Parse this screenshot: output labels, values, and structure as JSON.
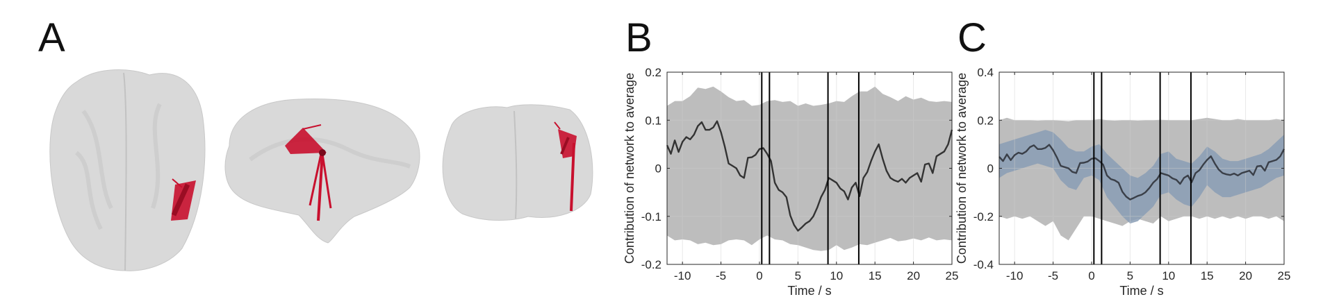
{
  "panels": {
    "a_label": "A",
    "b_label": "B",
    "c_label": "C"
  },
  "brain_views": {
    "views": [
      "axial",
      "sagittal",
      "coronal"
    ],
    "edge_color": "#d0182f",
    "brain_color": "#d7d7d7"
  },
  "chart_data": [
    {
      "panel": "B",
      "type": "line",
      "xlabel": "Time / s",
      "ylabel": "Contribution of network to average",
      "xlim": [
        -12,
        25
      ],
      "ylim": [
        -0.2,
        0.2
      ],
      "xticks": [
        -10,
        -5,
        0,
        5,
        10,
        15,
        20,
        25
      ],
      "yticks": [
        -0.2,
        -0.1,
        0,
        0.1,
        0.2
      ],
      "grid": true,
      "vertical_lines": [
        0.3,
        1.3,
        8.9,
        12.9
      ],
      "series": [
        {
          "role": "mean",
          "color": "#333333",
          "x": [
            -12,
            -11.5,
            -11,
            -10.5,
            -10,
            -9.5,
            -9,
            -8.5,
            -8,
            -7.5,
            -7,
            -6.5,
            -6,
            -5.5,
            -5,
            -4.5,
            -4,
            -3.5,
            -3,
            -2.5,
            -2,
            -1.5,
            -1,
            -0.5,
            0,
            0.5,
            1,
            1.5,
            2,
            2.5,
            3,
            3.5,
            4,
            4.5,
            5,
            5.5,
            6,
            6.5,
            7,
            7.5,
            8,
            8.5,
            9,
            9.5,
            10,
            10.5,
            11,
            11.5,
            12,
            12.5,
            13,
            13.5,
            14,
            14.5,
            15,
            15.5,
            16,
            16.5,
            17,
            17.5,
            18,
            18.5,
            19,
            19.5,
            20,
            20.5,
            21,
            21.5,
            22,
            22.5,
            23,
            23.5,
            24,
            24.5,
            25
          ],
          "y": [
            0.048,
            0.03,
            0.058,
            0.034,
            0.055,
            0.065,
            0.06,
            0.07,
            0.088,
            0.096,
            0.08,
            0.08,
            0.085,
            0.098,
            0.075,
            0.045,
            0.01,
            0.005,
            0.0,
            -0.015,
            -0.02,
            0.022,
            0.023,
            0.028,
            0.04,
            0.042,
            0.03,
            0.015,
            -0.03,
            -0.045,
            -0.05,
            -0.06,
            -0.098,
            -0.118,
            -0.13,
            -0.123,
            -0.115,
            -0.11,
            -0.1,
            -0.082,
            -0.06,
            -0.045,
            -0.02,
            -0.025,
            -0.03,
            -0.042,
            -0.048,
            -0.065,
            -0.04,
            -0.03,
            -0.058,
            -0.02,
            -0.008,
            0.015,
            0.035,
            0.05,
            0.02,
            -0.005,
            -0.02,
            -0.025,
            -0.028,
            -0.022,
            -0.03,
            -0.02,
            -0.015,
            -0.01,
            -0.028,
            0.008,
            0.01,
            -0.01,
            0.025,
            0.03,
            0.035,
            0.05,
            0.08
          ]
        },
        {
          "role": "null_band",
          "color": "#bdbdbd",
          "x": [
            -12,
            -11,
            -10,
            -9,
            -8,
            -7,
            -6,
            -5,
            -4,
            -3,
            -2,
            -1,
            0,
            1,
            2,
            3,
            4,
            5,
            6,
            7,
            8,
            9,
            10,
            11,
            12,
            13,
            14,
            15,
            16,
            17,
            18,
            19,
            20,
            21,
            22,
            23,
            24,
            25
          ],
          "upper": [
            0.13,
            0.14,
            0.14,
            0.15,
            0.168,
            0.165,
            0.17,
            0.16,
            0.148,
            0.14,
            0.142,
            0.13,
            0.132,
            0.14,
            0.142,
            0.138,
            0.14,
            0.13,
            0.135,
            0.13,
            0.132,
            0.135,
            0.14,
            0.138,
            0.15,
            0.16,
            0.16,
            0.17,
            0.155,
            0.148,
            0.14,
            0.15,
            0.143,
            0.147,
            0.14,
            0.138,
            0.14,
            0.138
          ],
          "lower": [
            -0.14,
            -0.15,
            -0.148,
            -0.15,
            -0.158,
            -0.155,
            -0.16,
            -0.158,
            -0.15,
            -0.148,
            -0.15,
            -0.16,
            -0.148,
            -0.14,
            -0.148,
            -0.15,
            -0.158,
            -0.16,
            -0.165,
            -0.17,
            -0.172,
            -0.17,
            -0.16,
            -0.17,
            -0.165,
            -0.158,
            -0.16,
            -0.155,
            -0.15,
            -0.145,
            -0.152,
            -0.15,
            -0.146,
            -0.15,
            -0.144,
            -0.15,
            -0.148,
            -0.15
          ]
        }
      ]
    },
    {
      "panel": "C",
      "type": "line",
      "xlabel": "Time / s",
      "ylabel": "Contribution of network to average",
      "xlim": [
        -12,
        25
      ],
      "ylim": [
        -0.4,
        0.4
      ],
      "xticks": [
        -10,
        -5,
        0,
        5,
        10,
        15,
        20,
        25
      ],
      "yticks": [
        -0.4,
        -0.2,
        0,
        0.2,
        0.4
      ],
      "grid": true,
      "vertical_lines": [
        0.3,
        1.3,
        8.9,
        12.9
      ],
      "series": [
        {
          "role": "mean",
          "color": "#3a3f48",
          "x": [
            -12,
            -11.5,
            -11,
            -10.5,
            -10,
            -9.5,
            -9,
            -8.5,
            -8,
            -7.5,
            -7,
            -6.5,
            -6,
            -5.5,
            -5,
            -4.5,
            -4,
            -3.5,
            -3,
            -2.5,
            -2,
            -1.5,
            -1,
            -0.5,
            0,
            0.5,
            1,
            1.5,
            2,
            2.5,
            3,
            3.5,
            4,
            4.5,
            5,
            5.5,
            6,
            6.5,
            7,
            7.5,
            8,
            8.5,
            9,
            9.5,
            10,
            10.5,
            11,
            11.5,
            12,
            12.5,
            13,
            13.5,
            14,
            14.5,
            15,
            15.5,
            16,
            16.5,
            17,
            17.5,
            18,
            18.5,
            19,
            19.5,
            20,
            20.5,
            21,
            21.5,
            22,
            22.5,
            23,
            23.5,
            24,
            24.5,
            25
          ],
          "y": [
            0.048,
            0.03,
            0.058,
            0.034,
            0.055,
            0.065,
            0.06,
            0.07,
            0.088,
            0.096,
            0.08,
            0.08,
            0.085,
            0.098,
            0.075,
            0.045,
            0.01,
            0.005,
            0.0,
            -0.015,
            -0.02,
            0.022,
            0.023,
            0.028,
            0.04,
            0.042,
            0.03,
            0.015,
            -0.03,
            -0.045,
            -0.05,
            -0.06,
            -0.098,
            -0.118,
            -0.13,
            -0.123,
            -0.115,
            -0.11,
            -0.1,
            -0.082,
            -0.06,
            -0.045,
            -0.02,
            -0.025,
            -0.03,
            -0.042,
            -0.048,
            -0.065,
            -0.04,
            -0.03,
            -0.058,
            -0.02,
            -0.008,
            0.015,
            0.035,
            0.05,
            0.02,
            -0.005,
            -0.02,
            -0.025,
            -0.028,
            -0.022,
            -0.03,
            -0.02,
            -0.015,
            -0.01,
            -0.028,
            0.008,
            0.01,
            -0.01,
            0.025,
            0.03,
            0.035,
            0.05,
            0.08
          ]
        },
        {
          "role": "ci_band",
          "color": "#8a9db5",
          "x": [
            -12,
            -11,
            -10,
            -9,
            -8,
            -7,
            -6,
            -5,
            -4,
            -3,
            -2,
            -1,
            0,
            1,
            2,
            3,
            4,
            5,
            6,
            7,
            8,
            9,
            10,
            11,
            12,
            13,
            14,
            15,
            16,
            17,
            18,
            19,
            20,
            21,
            22,
            23,
            24,
            25
          ],
          "upper": [
            0.1,
            0.11,
            0.12,
            0.13,
            0.14,
            0.15,
            0.16,
            0.15,
            0.12,
            0.085,
            0.07,
            0.07,
            0.09,
            0.1,
            0.06,
            0.03,
            0.0,
            -0.03,
            -0.04,
            -0.02,
            0.01,
            0.06,
            0.07,
            0.04,
            0.03,
            0.02,
            0.05,
            0.09,
            0.07,
            0.04,
            0.03,
            0.03,
            0.04,
            0.05,
            0.06,
            0.08,
            0.11,
            0.14
          ],
          "lower": [
            -0.04,
            -0.02,
            -0.01,
            0.0,
            0.01,
            0.02,
            0.01,
            0.0,
            -0.05,
            -0.08,
            -0.09,
            -0.04,
            -0.03,
            -0.05,
            -0.12,
            -0.16,
            -0.2,
            -0.23,
            -0.22,
            -0.19,
            -0.16,
            -0.11,
            -0.1,
            -0.13,
            -0.15,
            -0.16,
            -0.12,
            -0.07,
            -0.1,
            -0.12,
            -0.12,
            -0.11,
            -0.1,
            -0.09,
            -0.08,
            -0.06,
            -0.04,
            -0.03
          ]
        },
        {
          "role": "null_band",
          "color": "#bdbdbd",
          "x": [
            -12,
            -11,
            -10,
            -9,
            -8,
            -7,
            -6,
            -5,
            -4,
            -3,
            -2,
            -1,
            0,
            1,
            2,
            3,
            4,
            5,
            6,
            7,
            8,
            9,
            10,
            11,
            12,
            13,
            14,
            15,
            16,
            17,
            18,
            19,
            20,
            21,
            22,
            23,
            24,
            25
          ],
          "upper": [
            0.2,
            0.21,
            0.2,
            0.2,
            0.2,
            0.198,
            0.2,
            0.2,
            0.198,
            0.196,
            0.2,
            0.2,
            0.2,
            0.205,
            0.2,
            0.198,
            0.2,
            0.2,
            0.198,
            0.2,
            0.2,
            0.202,
            0.2,
            0.2,
            0.2,
            0.2,
            0.205,
            0.21,
            0.205,
            0.2,
            0.2,
            0.205,
            0.2,
            0.2,
            0.2,
            0.2,
            0.205,
            0.2
          ],
          "lower": [
            -0.2,
            -0.21,
            -0.2,
            -0.21,
            -0.2,
            -0.22,
            -0.24,
            -0.22,
            -0.28,
            -0.3,
            -0.25,
            -0.2,
            -0.2,
            -0.21,
            -0.22,
            -0.23,
            -0.24,
            -0.22,
            -0.21,
            -0.22,
            -0.23,
            -0.2,
            -0.22,
            -0.21,
            -0.2,
            -0.2,
            -0.21,
            -0.2,
            -0.21,
            -0.2,
            -0.21,
            -0.2,
            -0.21,
            -0.2,
            -0.2,
            -0.21,
            -0.2,
            -0.22
          ]
        }
      ]
    }
  ]
}
